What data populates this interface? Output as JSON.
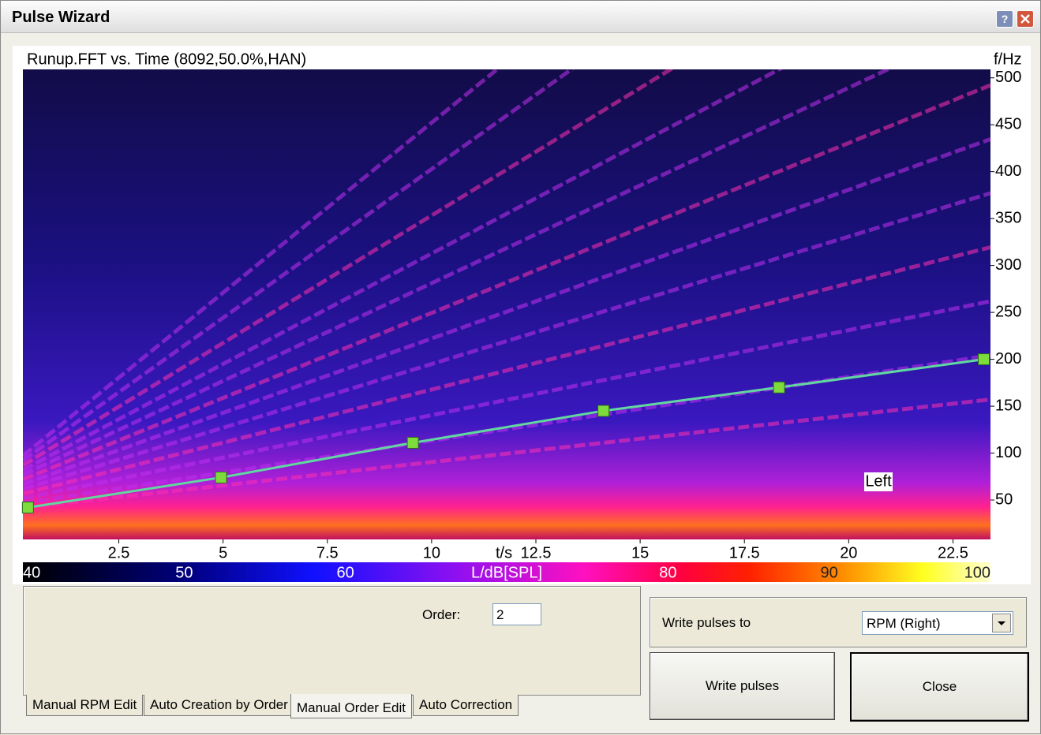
{
  "window": {
    "title": "Pulse Wizard",
    "help_button": "?"
  },
  "chart_data": {
    "type": "spectrogram",
    "title": "Runup.FFT vs. Time (8092,50.0%,HAN)",
    "x_label": "t/s",
    "y_label": "f/Hz",
    "x": [
      0.32,
      4.95,
      9.55,
      14.12,
      18.33,
      23.24
    ],
    "values": [
      42,
      74,
      111,
      145,
      170,
      200
    ],
    "color": "#7ddc3c",
    "xlim": [
      0.2,
      23.4
    ],
    "ylim": [
      8,
      509
    ],
    "xticks": [
      2.5,
      5,
      7.5,
      10,
      12.5,
      15,
      17.5,
      20,
      22.5
    ],
    "yticks": [
      50,
      100,
      150,
      200,
      250,
      300,
      350,
      400,
      450,
      500
    ],
    "annotation": "Left",
    "colorbar": {
      "label": "L/dB[SPL]",
      "lim": [
        40,
        100
      ],
      "ticks": [
        40,
        50,
        60,
        80,
        90,
        100
      ]
    }
  },
  "controls": {
    "order_label": "Order:",
    "order_value": "2",
    "write_to_label": "Write pulses to",
    "write_to_value": "RPM (Right)",
    "write_button": "Write pulses",
    "close_button": "Close",
    "tabs": [
      "Manual RPM Edit",
      "Auto Creation by Order",
      "Manual Order Edit",
      "Auto Correction"
    ],
    "active_tab": 2
  }
}
